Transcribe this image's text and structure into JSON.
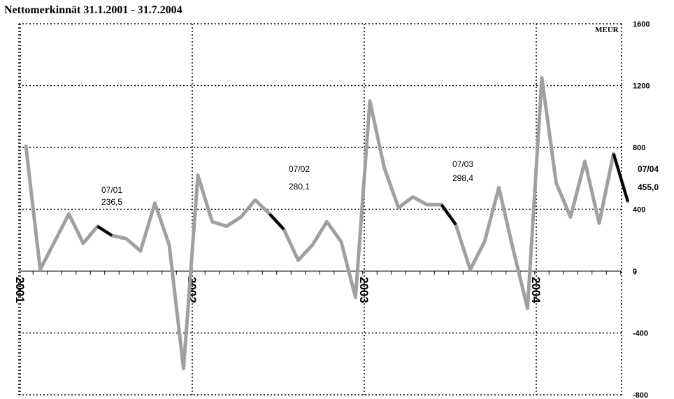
{
  "chart_data": {
    "type": "line",
    "title": "Nettomerkinnät 31.1.2001 - 31.7.2004",
    "unit_label": "MEUR",
    "ylim": [
      -800,
      1600
    ],
    "yticks": [
      1600,
      1200,
      800,
      400,
      0,
      -400,
      -800
    ],
    "grid": true,
    "x_year_labels": [
      "2001",
      "2002",
      "2003",
      "2004"
    ],
    "series": [
      {
        "x": [
          "2001-01",
          "2001-02",
          "2001-03",
          "2001-04",
          "2001-05",
          "2001-06",
          "2001-07",
          "2001-08",
          "2001-09",
          "2001-10",
          "2001-11",
          "2001-12",
          "2002-01",
          "2002-02",
          "2002-03",
          "2002-04",
          "2002-05",
          "2002-06",
          "2002-07",
          "2002-08",
          "2002-09",
          "2002-10",
          "2002-11",
          "2002-12",
          "2003-01",
          "2003-02",
          "2003-03",
          "2003-04",
          "2003-05",
          "2003-06",
          "2003-07",
          "2003-08",
          "2003-09",
          "2003-10",
          "2003-11",
          "2003-12",
          "2004-01",
          "2004-02",
          "2004-03",
          "2004-04",
          "2004-05",
          "2004-06",
          "2004-07"
        ],
        "values": [
          810,
          10,
          190,
          370,
          180,
          290,
          230,
          210,
          130,
          440,
          170,
          -630,
          620,
          320,
          290,
          350,
          460,
          370,
          270,
          70,
          170,
          320,
          190,
          -170,
          1100,
          670,
          410,
          480,
          430,
          430,
          300,
          10,
          190,
          540,
          140,
          -240,
          1250,
          570,
          350,
          710,
          310,
          760,
          450
        ]
      }
    ],
    "highlight_segments": [
      {
        "from": "2001-06",
        "to": "2001-07"
      },
      {
        "from": "2002-06",
        "to": "2002-07"
      },
      {
        "from": "2003-06",
        "to": "2003-07"
      },
      {
        "from": "2004-06",
        "to": "2004-07"
      }
    ],
    "annotations": [
      {
        "period": "07/01",
        "value": "236,5"
      },
      {
        "period": "07/02",
        "value": "280,1"
      },
      {
        "period": "07/03",
        "value": "298,4"
      },
      {
        "period": "07/04",
        "value": "455,0"
      }
    ]
  }
}
